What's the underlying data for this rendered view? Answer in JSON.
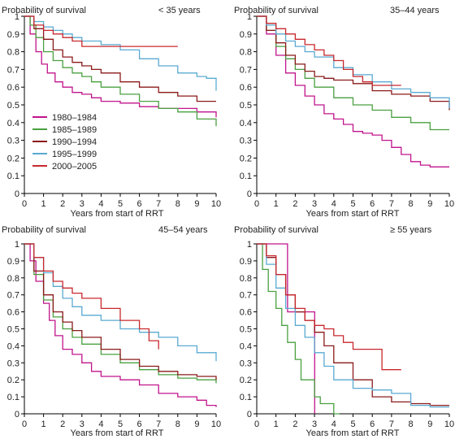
{
  "figure": {
    "ylabel": "Probability of survival",
    "xlabel": "Years from start of RRT",
    "series_colors": {
      "1980–1984": "#c0148c",
      "1985–1989": "#4aa040",
      "1990–1994": "#8b1a1a",
      "1995–1999": "#5aaad2",
      "2000–2005": "#c8282d"
    }
  },
  "chart_data": [
    {
      "type": "line",
      "title": "< 35 years",
      "xlabel": "Years from start of RRT",
      "ylabel": "Probability of survival",
      "xlim": [
        0,
        10
      ],
      "ylim": [
        0,
        1
      ],
      "x_ticks": [
        "0",
        "1",
        "2",
        "3",
        "4",
        "5",
        "6",
        "7",
        "8",
        "9",
        "10"
      ],
      "y_ticks": [
        "0",
        "0.1",
        "0.2",
        "0.3",
        "0.4",
        "0.5",
        "0.6",
        "0.7",
        "0.8",
        "0.9",
        "1"
      ],
      "legend": {
        "placement": "bottom-left",
        "entries": [
          "1980–1984",
          "1985–1989",
          "1990–1994",
          "1995–1999",
          "2000–2005"
        ]
      },
      "series": [
        {
          "name": "1980–1984",
          "x": [
            0,
            0.3,
            0.6,
            0.9,
            1.2,
            1.6,
            2,
            2.5,
            3,
            3.5,
            4,
            5,
            6,
            7,
            8,
            9,
            10
          ],
          "y": [
            1,
            0.9,
            0.8,
            0.73,
            0.68,
            0.63,
            0.6,
            0.57,
            0.56,
            0.54,
            0.52,
            0.51,
            0.49,
            0.48,
            0.48,
            0.46,
            0.43
          ]
        },
        {
          "name": "1985–1989",
          "x": [
            0,
            0.3,
            0.6,
            1,
            1.5,
            2,
            2.5,
            3,
            3.5,
            4,
            5,
            6,
            7,
            8,
            9,
            10
          ],
          "y": [
            1,
            0.95,
            0.88,
            0.8,
            0.75,
            0.71,
            0.68,
            0.66,
            0.63,
            0.6,
            0.56,
            0.52,
            0.48,
            0.46,
            0.42,
            0.38
          ]
        },
        {
          "name": "1990–1994",
          "x": [
            0,
            0.5,
            1,
            1.5,
            2,
            2.5,
            3,
            3.5,
            4,
            5,
            6,
            7,
            8,
            9,
            10
          ],
          "y": [
            1,
            0.93,
            0.87,
            0.81,
            0.77,
            0.74,
            0.72,
            0.7,
            0.68,
            0.63,
            0.6,
            0.57,
            0.55,
            0.52,
            0.52
          ]
        },
        {
          "name": "1995–1999",
          "x": [
            0,
            0.5,
            1,
            1.5,
            2,
            2.5,
            3,
            4,
            5,
            6,
            7,
            8,
            9,
            9.5,
            10
          ],
          "y": [
            1,
            0.97,
            0.94,
            0.92,
            0.9,
            0.88,
            0.86,
            0.84,
            0.81,
            0.76,
            0.72,
            0.68,
            0.66,
            0.65,
            0.58
          ]
        },
        {
          "name": "2000–2005",
          "x": [
            0,
            0.5,
            1,
            1.5,
            2,
            2.5,
            3,
            8
          ],
          "y": [
            1,
            0.95,
            0.92,
            0.9,
            0.88,
            0.86,
            0.83,
            0.83
          ]
        }
      ]
    },
    {
      "type": "line",
      "title": "35–44 years",
      "xlabel": "Years from start of RRT",
      "ylabel": "Probability of survival",
      "xlim": [
        0,
        10
      ],
      "ylim": [
        0,
        1
      ],
      "x_ticks": [
        "0",
        "1",
        "2",
        "3",
        "4",
        "5",
        "6",
        "7",
        "8",
        "9",
        "10"
      ],
      "y_ticks": [
        "0",
        "0.1",
        "0.2",
        "0.3",
        "0.4",
        "0.5",
        "0.6",
        "0.7",
        "0.8",
        "0.9",
        "1"
      ],
      "series": [
        {
          "name": "1980–1984",
          "x": [
            0,
            0.5,
            1,
            1.5,
            2,
            2.5,
            3,
            3.5,
            4,
            4.5,
            5,
            5.5,
            6,
            6.5,
            7,
            7.5,
            8,
            8.5,
            9,
            10
          ],
          "y": [
            1,
            0.9,
            0.78,
            0.68,
            0.61,
            0.55,
            0.5,
            0.45,
            0.42,
            0.39,
            0.35,
            0.34,
            0.33,
            0.3,
            0.26,
            0.22,
            0.18,
            0.16,
            0.15,
            0.15
          ]
        },
        {
          "name": "1985–1989",
          "x": [
            0,
            0.5,
            1,
            1.5,
            2,
            2.5,
            3,
            4,
            5,
            6,
            7,
            8,
            9,
            10
          ],
          "y": [
            1,
            0.92,
            0.83,
            0.76,
            0.7,
            0.65,
            0.6,
            0.54,
            0.5,
            0.47,
            0.43,
            0.4,
            0.36,
            0.36
          ]
        },
        {
          "name": "1990–1994",
          "x": [
            0,
            0.5,
            1,
            1.5,
            2,
            2.5,
            3,
            3.5,
            4,
            5,
            6,
            7,
            8,
            9,
            10
          ],
          "y": [
            1,
            0.92,
            0.85,
            0.78,
            0.73,
            0.69,
            0.66,
            0.65,
            0.64,
            0.62,
            0.58,
            0.56,
            0.55,
            0.52,
            0.47
          ]
        },
        {
          "name": "1995–1999",
          "x": [
            0,
            0.5,
            1,
            1.5,
            2,
            2.5,
            3,
            4,
            5,
            6,
            7,
            8,
            9,
            10
          ],
          "y": [
            1,
            0.95,
            0.9,
            0.86,
            0.83,
            0.8,
            0.77,
            0.71,
            0.67,
            0.63,
            0.59,
            0.57,
            0.54,
            0.48
          ]
        },
        {
          "name": "2000–2005",
          "x": [
            0,
            0.5,
            1,
            1.5,
            2,
            2.5,
            3,
            3.5,
            4,
            4.5,
            5,
            5.5,
            6,
            7.5
          ],
          "y": [
            1,
            0.96,
            0.93,
            0.9,
            0.87,
            0.84,
            0.81,
            0.78,
            0.75,
            0.7,
            0.66,
            0.63,
            0.61,
            0.61
          ]
        }
      ]
    },
    {
      "type": "line",
      "title": "45–54 years",
      "xlabel": "Years from start of RRT",
      "ylabel": "Probability of survival",
      "xlim": [
        0,
        10
      ],
      "ylim": [
        0,
        1
      ],
      "x_ticks": [
        "0",
        "1",
        "2",
        "3",
        "4",
        "5",
        "6",
        "7",
        "8",
        "9",
        "10"
      ],
      "y_ticks": [
        "0",
        "0.1",
        "0.2",
        "0.3",
        "0.4",
        "0.5",
        "0.6",
        "0.7",
        "0.8",
        "0.9",
        "1"
      ],
      "series": [
        {
          "name": "1980–1984",
          "x": [
            0,
            0.3,
            0.6,
            1,
            1.3,
            1.6,
            2,
            2.5,
            3,
            3.5,
            4,
            5,
            6,
            7,
            8,
            9,
            9.5,
            10
          ],
          "y": [
            1,
            0.9,
            0.78,
            0.65,
            0.55,
            0.46,
            0.38,
            0.35,
            0.3,
            0.25,
            0.22,
            0.2,
            0.17,
            0.12,
            0.1,
            0.08,
            0.05,
            0.04
          ]
        },
        {
          "name": "1985–1989",
          "x": [
            0,
            0.5,
            1,
            1.5,
            2,
            2.5,
            3,
            4,
            5,
            6,
            7,
            8,
            9,
            10
          ],
          "y": [
            1,
            0.82,
            0.67,
            0.57,
            0.5,
            0.45,
            0.41,
            0.35,
            0.3,
            0.26,
            0.23,
            0.21,
            0.2,
            0.18
          ]
        },
        {
          "name": "1990–1994",
          "x": [
            0,
            0.5,
            1,
            1.5,
            2,
            2.5,
            3,
            4,
            5,
            6,
            7,
            8,
            9,
            10
          ],
          "y": [
            1,
            0.84,
            0.7,
            0.6,
            0.54,
            0.49,
            0.45,
            0.38,
            0.32,
            0.28,
            0.25,
            0.23,
            0.22,
            0.2
          ]
        },
        {
          "name": "1995–1999",
          "x": [
            0,
            0.5,
            1,
            1.5,
            2,
            2.5,
            3,
            4,
            5,
            6,
            7,
            8,
            9,
            10
          ],
          "y": [
            1,
            0.92,
            0.83,
            0.75,
            0.68,
            0.63,
            0.58,
            0.55,
            0.5,
            0.48,
            0.45,
            0.4,
            0.36,
            0.31
          ]
        },
        {
          "name": "2000–2005",
          "x": [
            0,
            0.5,
            1,
            1.5,
            2,
            2.5,
            3,
            4,
            5,
            6,
            6.5,
            7
          ],
          "y": [
            1,
            0.92,
            0.84,
            0.78,
            0.74,
            0.71,
            0.68,
            0.62,
            0.55,
            0.5,
            0.43,
            0.38
          ]
        }
      ]
    },
    {
      "type": "line",
      "title": "≥ 55 years",
      "xlabel": "Years from start of RRT",
      "ylabel": "Probability of survival",
      "xlim": [
        0,
        10
      ],
      "ylim": [
        0,
        1
      ],
      "x_ticks": [
        "0",
        "1",
        "2",
        "3",
        "4",
        "5",
        "6",
        "7",
        "8",
        "9",
        "10"
      ],
      "y_ticks": [
        "0",
        "0.1",
        "0.2",
        "0.3",
        "0.4",
        "0.5",
        "0.6",
        "0.7",
        "0.8",
        "0.9",
        "1"
      ],
      "series": [
        {
          "name": "1980–1984",
          "x": [
            0,
            1.3,
            1.6,
            2,
            2.5,
            3,
            3.01
          ],
          "y": [
            1,
            1,
            0.6,
            0.6,
            0.6,
            0.6,
            0
          ]
        },
        {
          "name": "1985–1989",
          "x": [
            0,
            0.3,
            0.6,
            1,
            1.3,
            1.6,
            2,
            2.3,
            2.6,
            3,
            3.3,
            3.6,
            4,
            4.3
          ],
          "y": [
            1,
            0.85,
            0.72,
            0.62,
            0.52,
            0.42,
            0.32,
            0.2,
            0.2,
            0.1,
            0.06,
            0.06,
            0,
            0
          ]
        },
        {
          "name": "1990–1994",
          "x": [
            0,
            0.5,
            1,
            1.5,
            2,
            2.5,
            3,
            3.5,
            4,
            5,
            6,
            7,
            8,
            9,
            10
          ],
          "y": [
            1,
            0.92,
            0.82,
            0.7,
            0.6,
            0.55,
            0.48,
            0.4,
            0.3,
            0.2,
            0.1,
            0.07,
            0.06,
            0.05,
            0.05
          ]
        },
        {
          "name": "1995–1999",
          "x": [
            0,
            0.5,
            1,
            1.5,
            2,
            2.5,
            3,
            3.5,
            4,
            5,
            6,
            7,
            8,
            9,
            10
          ],
          "y": [
            1,
            0.88,
            0.74,
            0.62,
            0.52,
            0.45,
            0.36,
            0.28,
            0.2,
            0.15,
            0.14,
            0.12,
            0.05,
            0.04,
            0.04
          ]
        },
        {
          "name": "2000–2005",
          "x": [
            0,
            0.5,
            1,
            1.5,
            2,
            2.5,
            3,
            3.5,
            4,
            4.5,
            5,
            5.5,
            6,
            6.5,
            7.5
          ],
          "y": [
            1,
            0.93,
            0.82,
            0.7,
            0.62,
            0.55,
            0.52,
            0.5,
            0.46,
            0.42,
            0.38,
            0.38,
            0.38,
            0.26,
            0.26
          ]
        }
      ]
    }
  ]
}
